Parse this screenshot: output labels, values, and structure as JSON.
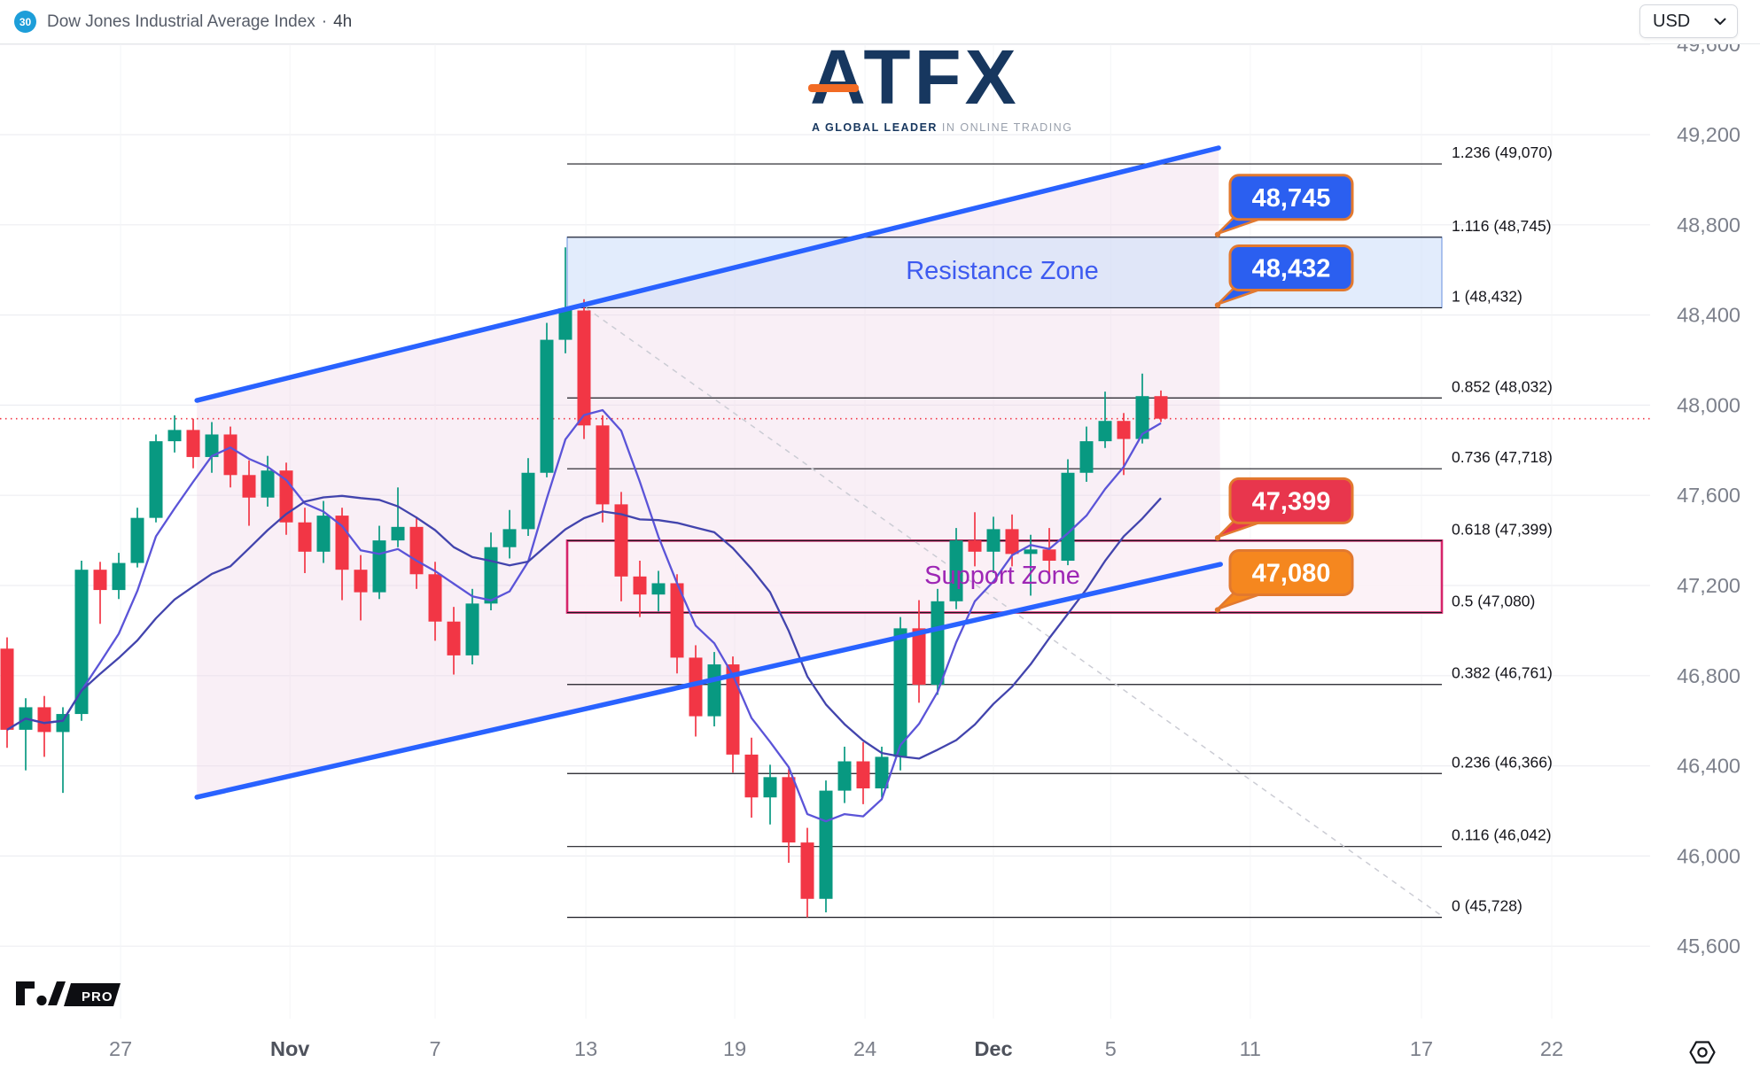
{
  "header": {
    "badge": "30",
    "title": "Dow Jones Industrial Average Index",
    "separator": "·",
    "timeframe": "4h",
    "currency": "USD"
  },
  "logo": {
    "name": "ATFX",
    "tagline_bold": "A GLOBAL LEADER",
    "tagline_rest": " IN ONLINE TRADING"
  },
  "watermark": {
    "pro_label": "PRO"
  },
  "chart_data": {
    "type": "candlestick",
    "symbol": "Dow Jones Industrial Average Index",
    "timeframe": "4h",
    "colors": {
      "up": "#089981",
      "down": "#f23645",
      "channel_line": "#2962ff",
      "channel_fill": "rgba(238,214,232,0.38)",
      "resistance_fill": "rgba(206,223,250,0.6)",
      "resistance_border": "#7da0e3",
      "support_fill": "rgba(252,240,246,0.85)",
      "support_border": "#d6246a",
      "fib_line": "#1a1a21",
      "price_line": "#f23645",
      "axis_text": "#7c808b",
      "axis_text_bold": "#4e525c",
      "callout_border": "#e2792f"
    },
    "y_axis": {
      "ticks": [
        49600,
        49200,
        48800,
        48400,
        48000,
        47600,
        47200,
        46800,
        46400,
        46000,
        45600
      ]
    },
    "x_axis": {
      "ticks": [
        {
          "label": "27",
          "pos": 6.1,
          "bold": false
        },
        {
          "label": "Nov",
          "pos": 15.2,
          "bold": true
        },
        {
          "label": "7",
          "pos": 23.0,
          "bold": false
        },
        {
          "label": "13",
          "pos": 31.1,
          "bold": false
        },
        {
          "label": "19",
          "pos": 39.1,
          "bold": false
        },
        {
          "label": "24",
          "pos": 46.1,
          "bold": false
        },
        {
          "label": "Dec",
          "pos": 53.0,
          "bold": true
        },
        {
          "label": "5",
          "pos": 59.3,
          "bold": false
        },
        {
          "label": "11",
          "pos": 66.8,
          "bold": false
        },
        {
          "label": "17",
          "pos": 76.0,
          "bold": false
        },
        {
          "label": "22",
          "pos": 83.0,
          "bold": false
        }
      ]
    },
    "fib_levels": [
      {
        "ratio": "1.236",
        "price": 49070
      },
      {
        "ratio": "1.116",
        "price": 48745
      },
      {
        "ratio": "1",
        "price": 48432
      },
      {
        "ratio": "0.852",
        "price": 48032
      },
      {
        "ratio": "0.736",
        "price": 47718
      },
      {
        "ratio": "0.618",
        "price": 47399
      },
      {
        "ratio": "0.5",
        "price": 47080
      },
      {
        "ratio": "0.382",
        "price": 46761
      },
      {
        "ratio": "0.236",
        "price": 46366
      },
      {
        "ratio": "0.116",
        "price": 46042
      },
      {
        "ratio": "0",
        "price": 45728
      }
    ],
    "zones": [
      {
        "name": "resistance",
        "label": "Resistance Zone",
        "from": 48745,
        "to": 48432
      },
      {
        "name": "support",
        "label": "Support Zone",
        "from": 47399,
        "to": 47080
      }
    ],
    "callouts": [
      {
        "text": "48,745",
        "bg": "#2b5ff0",
        "price": 48745
      },
      {
        "text": "48,432",
        "bg": "#2b5ff0",
        "price": 48432
      },
      {
        "text": "47,399",
        "bg": "#e8364d",
        "price": 47399
      },
      {
        "text": "47,080",
        "bg": "#f5871f",
        "price": 47080
      }
    ],
    "price_line_value": 47940,
    "channel": {
      "upper": [
        {
          "i": 10.2,
          "p": 48021
        },
        {
          "i": 65.1,
          "p": 49141
        }
      ],
      "lower": [
        {
          "i": 10.2,
          "p": 46261
        },
        {
          "i": 65.2,
          "p": 47294
        }
      ]
    },
    "dashed_line": {
      "from": {
        "i": 31.1,
        "p": 48432
      },
      "to": {
        "i": 77.2,
        "p": 45728
      }
    },
    "moving_averages": [
      {
        "period": 5,
        "color": "#5b54d8"
      },
      {
        "period": 13,
        "color": "#4244ad"
      }
    ],
    "candles": [
      [
        46920,
        46970,
        46480,
        46560
      ],
      [
        46560,
        46700,
        46380,
        46660
      ],
      [
        46660,
        46710,
        46440,
        46550
      ],
      [
        46550,
        46660,
        46280,
        46630
      ],
      [
        46630,
        47310,
        46600,
        47270
      ],
      [
        47270,
        47305,
        47030,
        47180
      ],
      [
        47180,
        47345,
        47140,
        47300
      ],
      [
        47300,
        47545,
        47280,
        47500
      ],
      [
        47500,
        47870,
        47480,
        47840
      ],
      [
        47840,
        47955,
        47790,
        47890
      ],
      [
        47890,
        47940,
        47720,
        47770
      ],
      [
        47770,
        47925,
        47700,
        47870
      ],
      [
        47870,
        47905,
        47635,
        47690
      ],
      [
        47690,
        47755,
        47465,
        47590
      ],
      [
        47590,
        47775,
        47550,
        47710
      ],
      [
        47710,
        47745,
        47425,
        47480
      ],
      [
        47480,
        47545,
        47255,
        47350
      ],
      [
        47350,
        47575,
        47300,
        47510
      ],
      [
        47510,
        47545,
        47135,
        47270
      ],
      [
        47270,
        47335,
        47045,
        47170
      ],
      [
        47170,
        47465,
        47140,
        47400
      ],
      [
        47400,
        47635,
        47370,
        47460
      ],
      [
        47460,
        47505,
        47185,
        47250
      ],
      [
        47250,
        47305,
        46955,
        47040
      ],
      [
        47040,
        47105,
        46805,
        46890
      ],
      [
        46890,
        47185,
        46850,
        47120
      ],
      [
        47120,
        47435,
        47090,
        47370
      ],
      [
        47370,
        47535,
        47320,
        47450
      ],
      [
        47450,
        47765,
        47420,
        47700
      ],
      [
        47700,
        48365,
        47680,
        48290
      ],
      [
        48290,
        48700,
        48230,
        48430
      ],
      [
        48420,
        48470,
        47850,
        47910
      ],
      [
        47910,
        47955,
        47480,
        47560
      ],
      [
        47560,
        47615,
        47130,
        47240
      ],
      [
        47240,
        47310,
        47060,
        47160
      ],
      [
        47160,
        47265,
        47085,
        47210
      ],
      [
        47210,
        47250,
        46810,
        46880
      ],
      [
        46880,
        46935,
        46530,
        46620
      ],
      [
        46620,
        46905,
        46575,
        46850
      ],
      [
        46850,
        46885,
        46370,
        46450
      ],
      [
        46450,
        46525,
        46170,
        46260
      ],
      [
        46260,
        46405,
        46140,
        46350
      ],
      [
        46350,
        46385,
        45970,
        46060
      ],
      [
        46060,
        46125,
        45728,
        45810
      ],
      [
        45810,
        46335,
        45750,
        46290
      ],
      [
        46290,
        46485,
        46235,
        46420
      ],
      [
        46420,
        46505,
        46230,
        46300
      ],
      [
        46300,
        46485,
        46260,
        46440
      ],
      [
        46440,
        47060,
        46380,
        47010
      ],
      [
        47010,
        47135,
        46680,
        46760
      ],
      [
        46760,
        47185,
        46715,
        47130
      ],
      [
        47130,
        47455,
        47095,
        47400
      ],
      [
        47400,
        47525,
        47285,
        47350
      ],
      [
        47350,
        47505,
        47255,
        47450
      ],
      [
        47450,
        47515,
        47285,
        47340
      ],
      [
        47340,
        47425,
        47155,
        47360
      ],
      [
        47360,
        47455,
        47225,
        47310
      ],
      [
        47310,
        47760,
        47290,
        47700
      ],
      [
        47700,
        47905,
        47660,
        47840
      ],
      [
        47840,
        48060,
        47810,
        47930
      ],
      [
        47930,
        47965,
        47690,
        47850
      ],
      [
        47850,
        48140,
        47830,
        48040
      ],
      [
        48040,
        48065,
        47925,
        47940
      ]
    ]
  }
}
